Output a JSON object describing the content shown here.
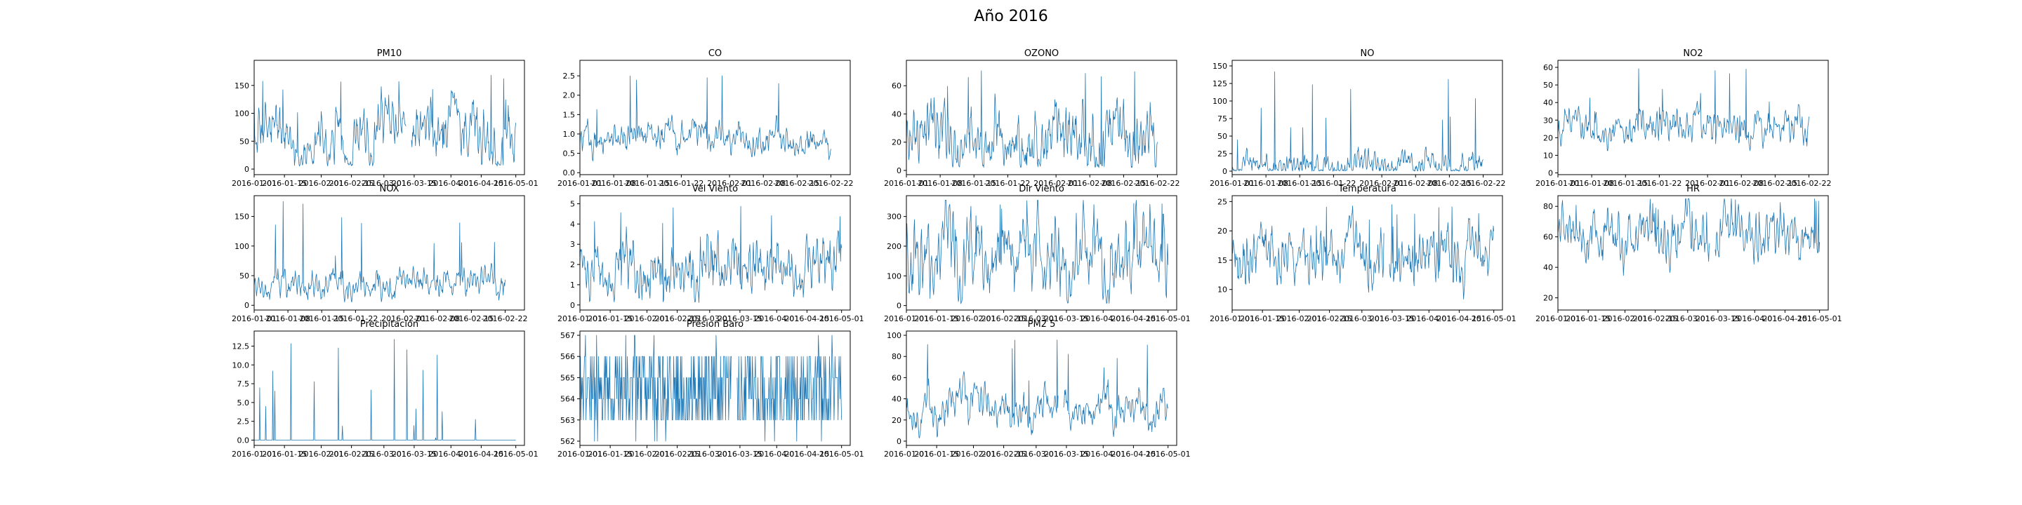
{
  "figure": {
    "title": "Año 2016"
  },
  "chart_data": [
    {
      "type": "line",
      "title": "PM10",
      "color": "#1f77b4",
      "xticks": [
        "2016-01-01",
        "2016-01-15",
        "2016-02-01",
        "2016-02-15",
        "2016-03-01",
        "2016-03-15",
        "2016-04-01",
        "2016-04-15",
        "2016-05-01"
      ],
      "xlim": [
        "2016-01-01",
        "2016-05-05"
      ],
      "yticks": [
        0,
        50,
        100,
        150
      ],
      "ylim": [
        -10,
        195
      ],
      "shape": {
        "base": 60,
        "spread": 55,
        "peak": 185,
        "min": 5,
        "gaps": [
          [
            0.58,
            0.6
          ]
        ]
      }
    },
    {
      "type": "line",
      "title": "CO",
      "color": "#1f77b4",
      "xticks": [
        "2016-01-01",
        "2016-01-08",
        "2016-01-15",
        "2016-01-22",
        "2016-02-01",
        "2016-02-08",
        "2016-02-15",
        "2016-02-22"
      ],
      "xlim": [
        "2016-01-01",
        "2016-02-26"
      ],
      "yticks": [
        0.0,
        0.5,
        1.0,
        1.5,
        2.0,
        2.5
      ],
      "ylim": [
        -0.05,
        2.9
      ],
      "shape": {
        "base": 0.85,
        "spread": 0.4,
        "peak": 2.7,
        "min": 0.2,
        "gaps": []
      }
    },
    {
      "type": "line",
      "title": "OZONO",
      "color": "#1f77b4",
      "xticks": [
        "2016-01-01",
        "2016-01-08",
        "2016-01-15",
        "2016-01-22",
        "2016-02-01",
        "2016-02-08",
        "2016-02-15",
        "2016-02-22"
      ],
      "xlim": [
        "2016-01-01",
        "2016-02-26"
      ],
      "yticks": [
        0,
        20,
        40,
        60
      ],
      "ylim": [
        -3,
        78
      ],
      "shape": {
        "base": 25,
        "spread": 25,
        "peak": 72,
        "min": 2,
        "gaps": []
      }
    },
    {
      "type": "line",
      "title": "NO",
      "color": "#1f77b4",
      "xticks": [
        "2016-01-01",
        "2016-01-08",
        "2016-01-15",
        "2016-01-22",
        "2016-02-01",
        "2016-02-08",
        "2016-02-15",
        "2016-02-22"
      ],
      "xlim": [
        "2016-01-01",
        "2016-02-26"
      ],
      "yticks": [
        0,
        25,
        50,
        75,
        100,
        125,
        150
      ],
      "ylim": [
        -5,
        158
      ],
      "shape": {
        "base": 10,
        "spread": 20,
        "peak": 150,
        "min": 0,
        "gaps": []
      }
    },
    {
      "type": "line",
      "title": "NO2",
      "color": "#1f77b4",
      "xticks": [
        "2016-01-01",
        "2016-01-08",
        "2016-01-15",
        "2016-01-22",
        "2016-02-01",
        "2016-02-08",
        "2016-02-15",
        "2016-02-22"
      ],
      "xlim": [
        "2016-01-01",
        "2016-02-26"
      ],
      "yticks": [
        0,
        10,
        20,
        30,
        40,
        50,
        60
      ],
      "ylim": [
        -1,
        64
      ],
      "shape": {
        "base": 25,
        "spread": 10,
        "peak": 60,
        "min": 3,
        "gaps": []
      }
    },
    {
      "type": "line",
      "title": "NOX",
      "color": "#1f77b4",
      "xticks": [
        "2016-01-01",
        "2016-01-08",
        "2016-01-15",
        "2016-01-22",
        "2016-02-01",
        "2016-02-08",
        "2016-02-15",
        "2016-02-22"
      ],
      "xlim": [
        "2016-01-01",
        "2016-02-26"
      ],
      "yticks": [
        0,
        50,
        100,
        150
      ],
      "ylim": [
        -8,
        185
      ],
      "shape": {
        "base": 35,
        "spread": 25,
        "peak": 178,
        "min": 5,
        "gaps": []
      }
    },
    {
      "type": "line",
      "title": "Vel Viento",
      "color": "#1f77b4",
      "xticks": [
        "2016-01-01",
        "2016-01-15",
        "2016-02-01",
        "2016-02-15",
        "2016-03-01",
        "2016-03-15",
        "2016-04-01",
        "2016-04-15",
        "2016-05-01"
      ],
      "xlim": [
        "2016-01-01",
        "2016-05-05"
      ],
      "yticks": [
        0,
        1,
        2,
        3,
        4,
        5
      ],
      "ylim": [
        -0.25,
        5.4
      ],
      "shape": {
        "base": 2.0,
        "spread": 1.6,
        "peak": 5.0,
        "min": 0.1,
        "gaps": []
      }
    },
    {
      "type": "line",
      "title": "Dir Viento",
      "color": "#1f77b4",
      "xticks": [
        "2016-01-01",
        "2016-01-15",
        "2016-02-01",
        "2016-02-15",
        "2016-03-01",
        "2016-03-15",
        "2016-04-01",
        "2016-04-15",
        "2016-05-01"
      ],
      "xlim": [
        "2016-01-01",
        "2016-05-05"
      ],
      "yticks": [
        0,
        100,
        200,
        300
      ],
      "ylim": [
        -15,
        370
      ],
      "shape": {
        "base": 170,
        "spread": 150,
        "peak": 355,
        "min": 5,
        "gaps": []
      }
    },
    {
      "type": "line",
      "title": "Temperatura",
      "color": "#1f77b4",
      "xticks": [
        "2016-01-01",
        "2016-01-15",
        "2016-02-01",
        "2016-02-15",
        "2016-03-01",
        "2016-03-15",
        "2016-04-01",
        "2016-04-15",
        "2016-05-01"
      ],
      "xlim": [
        "2016-01-01",
        "2016-05-05"
      ],
      "yticks": [
        10,
        15,
        20,
        25
      ],
      "ylim": [
        6.5,
        26
      ],
      "shape": {
        "base": 16,
        "spread": 5,
        "peak": 25,
        "min": 8,
        "gaps": [
          [
            0.58,
            0.6
          ]
        ]
      }
    },
    {
      "type": "line",
      "title": "HR",
      "color": "#1f77b4",
      "xticks": [
        "2016-01-01",
        "2016-01-15",
        "2016-02-01",
        "2016-02-15",
        "2016-03-01",
        "2016-03-15",
        "2016-04-01",
        "2016-04-15",
        "2016-05-01"
      ],
      "xlim": [
        "2016-01-01",
        "2016-05-05"
      ],
      "yticks": [
        20,
        40,
        60,
        80
      ],
      "ylim": [
        12,
        87
      ],
      "shape": {
        "base": 60,
        "spread": 18,
        "peak": 85,
        "min": 15,
        "gaps": [
          [
            0.58,
            0.6
          ]
        ]
      }
    },
    {
      "type": "line",
      "title": "Precipitacion",
      "color": "#1f77b4",
      "xticks": [
        "2016-01-01",
        "2016-01-15",
        "2016-02-01",
        "2016-02-15",
        "2016-03-01",
        "2016-03-15",
        "2016-04-01",
        "2016-04-15",
        "2016-05-01"
      ],
      "xlim": [
        "2016-01-01",
        "2016-05-05"
      ],
      "yticks": [
        0.0,
        2.5,
        5.0,
        7.5,
        10.0,
        12.5
      ],
      "ylim": [
        -0.7,
        14.5
      ],
      "shape": {
        "base": 0,
        "spread": 0,
        "peak": 14,
        "min": 0,
        "gaps": []
      }
    },
    {
      "type": "line",
      "title": "Presion Baro",
      "color": "#1f77b4",
      "xticks": [
        "2016-01-01",
        "2016-01-15",
        "2016-02-01",
        "2016-02-15",
        "2016-03-01",
        "2016-03-15",
        "2016-04-01",
        "2016-04-15",
        "2016-05-01"
      ],
      "xlim": [
        "2016-01-01",
        "2016-05-05"
      ],
      "yticks": [
        562,
        563,
        564,
        565,
        566,
        567
      ],
      "ylim": [
        561.8,
        567.2
      ],
      "shape": {
        "base": 564.5,
        "spread": 1.5,
        "peak": 567,
        "min": 562,
        "gaps": [
          [
            0.58,
            0.6
          ]
        ]
      }
    },
    {
      "type": "line",
      "title": "PM2 5",
      "color": "#1f77b4",
      "xticks": [
        "2016-01-01",
        "2016-01-15",
        "2016-02-01",
        "2016-02-15",
        "2016-03-01",
        "2016-03-15",
        "2016-04-01",
        "2016-04-15",
        "2016-05-01"
      ],
      "xlim": [
        "2016-01-01",
        "2016-05-05"
      ],
      "yticks": [
        0,
        20,
        40,
        60,
        80,
        100
      ],
      "ylim": [
        -4,
        104
      ],
      "shape": {
        "base": 30,
        "spread": 20,
        "peak": 100,
        "min": 2,
        "gaps": [
          [
            0.58,
            0.6
          ]
        ]
      }
    }
  ]
}
